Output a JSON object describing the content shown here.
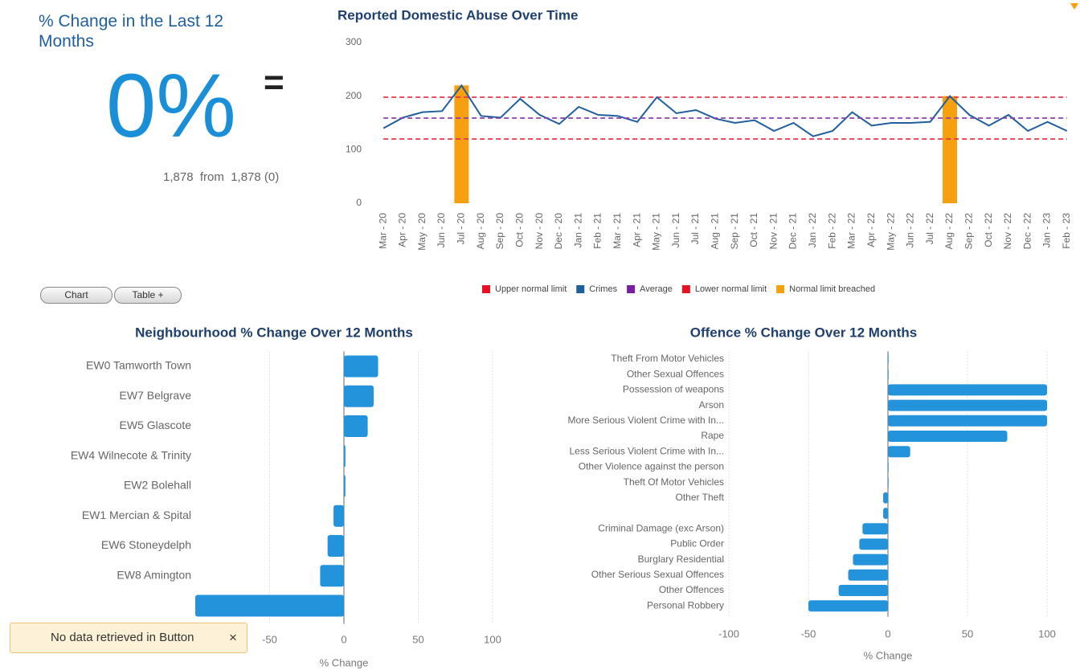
{
  "kpi": {
    "title": "% Change in the Last 12 Months",
    "value": "0%",
    "trend": "=",
    "detail": "1,878  from  1,878 (0)"
  },
  "buttons": [
    "Chart",
    "Table +"
  ],
  "toast": {
    "message": "No data retrieved in Button",
    "close": "×"
  },
  "chart_data": [
    {
      "type": "line",
      "title": "Reported Domestic Abuse Over Time",
      "categories": [
        "Mar - 20",
        "Apr - 20",
        "May - 20",
        "Jun - 20",
        "Jul - 20",
        "Aug - 20",
        "Sep - 20",
        "Oct - 20",
        "Nov - 20",
        "Dec - 20",
        "Jan - 21",
        "Feb - 21",
        "Mar - 21",
        "Apr - 21",
        "May - 21",
        "Jun - 21",
        "Jul - 21",
        "Aug - 21",
        "Sep - 21",
        "Oct - 21",
        "Nov - 21",
        "Dec - 21",
        "Jan - 22",
        "Feb - 22",
        "Mar - 22",
        "Apr - 22",
        "May - 22",
        "Jun - 22",
        "Jul - 22",
        "Aug - 22",
        "Sep - 22",
        "Oct - 22",
        "Nov - 22",
        "Dec - 22",
        "Jan - 23",
        "Feb - 23"
      ],
      "series": [
        {
          "name": "Upper normal limit",
          "color": "#e8334a",
          "mark": "line",
          "dashed": true,
          "values": [
            198,
            198,
            198,
            198,
            198,
            198,
            198,
            198,
            198,
            198,
            198,
            198,
            198,
            198,
            198,
            198,
            198,
            198,
            198,
            198,
            198,
            198,
            198,
            198,
            198,
            198,
            198,
            198,
            198,
            198,
            198,
            198,
            198,
            198,
            198,
            198
          ]
        },
        {
          "name": "Crimes",
          "color": "#1f5f9e",
          "mark": "line",
          "dashed": false,
          "values": [
            140,
            160,
            170,
            172,
            220,
            163,
            160,
            195,
            165,
            148,
            180,
            165,
            163,
            152,
            198,
            168,
            174,
            158,
            150,
            155,
            135,
            150,
            125,
            135,
            170,
            145,
            150,
            150,
            152,
            200,
            165,
            145,
            165,
            135,
            152,
            135
          ]
        },
        {
          "name": "Average",
          "color": "#8e3fb0",
          "mark": "line",
          "dashed": true,
          "values": [
            159,
            159,
            159,
            159,
            159,
            159,
            159,
            159,
            159,
            159,
            159,
            159,
            159,
            159,
            159,
            159,
            159,
            159,
            159,
            159,
            159,
            159,
            159,
            159,
            159,
            159,
            159,
            159,
            159,
            159,
            159,
            159,
            159,
            159,
            159,
            159
          ]
        },
        {
          "name": "Lower normal limit",
          "color": "#e8334a",
          "mark": "line",
          "dashed": true,
          "values": [
            120,
            120,
            120,
            120,
            120,
            120,
            120,
            120,
            120,
            120,
            120,
            120,
            120,
            120,
            120,
            120,
            120,
            120,
            120,
            120,
            120,
            120,
            120,
            120,
            120,
            120,
            120,
            120,
            120,
            120,
            120,
            120,
            120,
            120,
            120,
            120
          ]
        },
        {
          "name": "Normal limit breached",
          "color": "#f7a00f",
          "mark": "bar",
          "dashed": false,
          "values": [
            null,
            null,
            null,
            null,
            220,
            null,
            null,
            null,
            null,
            null,
            null,
            null,
            null,
            null,
            null,
            null,
            null,
            null,
            null,
            null,
            null,
            null,
            null,
            null,
            null,
            null,
            null,
            null,
            null,
            200,
            null,
            null,
            null,
            null,
            null,
            null
          ]
        }
      ],
      "legend_colors": [
        "#e81123",
        "#1f5f9e",
        "#7b1fa2",
        "#e81123",
        "#f7a00f"
      ],
      "ylim": [
        0,
        300
      ],
      "yticks": [
        0,
        100,
        200,
        300
      ],
      "grid": false
    },
    {
      "type": "hbar",
      "title": "Neighbourhood % Change Over 12 Months",
      "categories": [
        "EW0 Tamworth Town",
        "EW7 Belgrave",
        "EW5 Glascote",
        "EW4 Wilnecote & Trinity",
        "EW2 Bolehall",
        "EW1 Mercian & Spital",
        "EW6 Stoneydelph",
        "EW8 Amington",
        null
      ],
      "values": [
        23,
        20,
        16,
        1,
        1,
        -7,
        -11,
        -16,
        -100
      ],
      "color": "#2394dc",
      "xlim": [
        -100,
        100
      ],
      "xticks": [
        -50,
        0,
        50,
        100
      ],
      "xlabel": "% Change",
      "grid": true
    },
    {
      "type": "hbar",
      "title": "Offence % Change Over 12 Months",
      "categories": [
        "Theft From Motor Vehicles",
        "Other Sexual Offences",
        "Possession of weapons",
        "Arson",
        "More Serious Violent Crime with In...",
        "Rape",
        "Less Serious Violent Crime with In...",
        "Other Violence against the person",
        "Theft Of Motor Vehicles",
        "Other Theft",
        null,
        "Criminal Damage (exc Arson)",
        "Public Order",
        "Burglary Residential",
        "Other Serious Sexual Offences",
        "Other Offences",
        "Personal Robbery"
      ],
      "values": [
        0,
        0,
        100,
        100,
        100,
        75,
        14,
        0,
        0,
        -3,
        -3,
        -16,
        -18,
        -22,
        -25,
        -31,
        -50
      ],
      "color": "#2394dc",
      "xlim": [
        -100,
        100
      ],
      "xticks": [
        -100,
        -50,
        0,
        50,
        100
      ],
      "xlabel": "% Change",
      "grid": true
    }
  ]
}
